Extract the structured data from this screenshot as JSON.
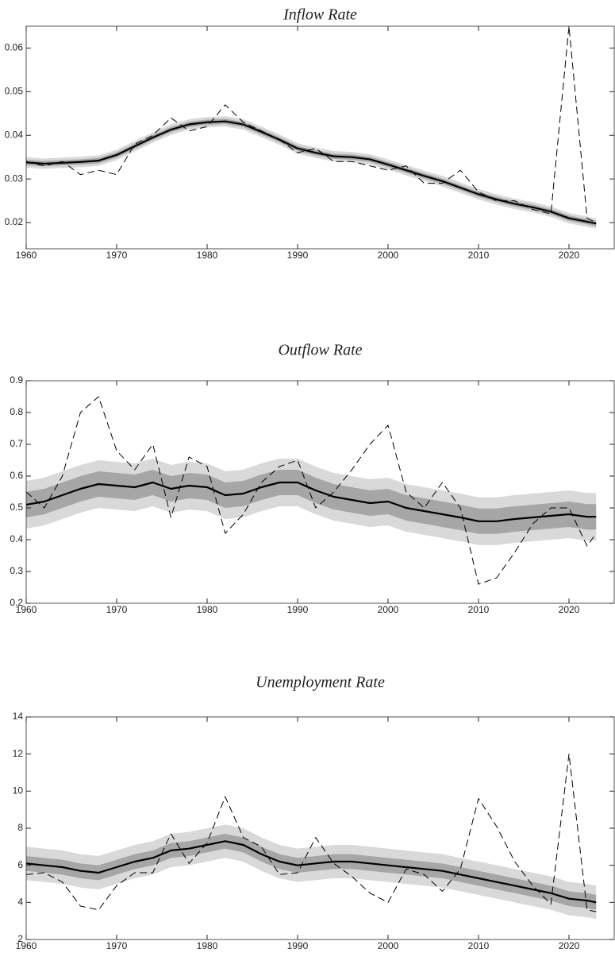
{
  "chart_data": [
    {
      "type": "line",
      "title": "Inflow Rate",
      "x": [
        1960,
        1962,
        1964,
        1966,
        1968,
        1970,
        1972,
        1974,
        1976,
        1978,
        1980,
        1982,
        1984,
        1986,
        1988,
        1990,
        1992,
        1994,
        1996,
        1998,
        2000,
        2002,
        2004,
        2006,
        2008,
        2010,
        2012,
        2014,
        2016,
        2018,
        2020,
        2022,
        2023
      ],
      "xlim": [
        1960,
        2025
      ],
      "xticks": [
        1960,
        1970,
        1980,
        1990,
        2000,
        2010,
        2020
      ],
      "ylim": [
        0.014,
        0.065
      ],
      "yticks": [
        0.02,
        0.03,
        0.04,
        0.05,
        0.06
      ],
      "bands": [
        {
          "color": "#d9d9d9",
          "lower": [
            0.0326,
            0.0323,
            0.0325,
            0.0327,
            0.033,
            0.0343,
            0.0363,
            0.0383,
            0.0401,
            0.0413,
            0.0418,
            0.042,
            0.0413,
            0.0396,
            0.0378,
            0.0358,
            0.0348,
            0.034,
            0.0338,
            0.0333,
            0.0321,
            0.0308,
            0.0295,
            0.0283,
            0.0268,
            0.0253,
            0.0241,
            0.0231,
            0.0223,
            0.0213,
            0.0198,
            0.019,
            0.0186
          ],
          "upper": [
            0.035,
            0.0347,
            0.0349,
            0.0351,
            0.0354,
            0.0367,
            0.0387,
            0.0407,
            0.0425,
            0.0437,
            0.0442,
            0.0444,
            0.0437,
            0.042,
            0.0402,
            0.0382,
            0.0372,
            0.0364,
            0.0362,
            0.0357,
            0.0345,
            0.0332,
            0.0319,
            0.0307,
            0.0292,
            0.0277,
            0.0265,
            0.0255,
            0.0247,
            0.0237,
            0.0222,
            0.0214,
            0.021
          ]
        },
        {
          "color": "#a6a6a6",
          "lower": [
            0.0332,
            0.0329,
            0.0331,
            0.0333,
            0.0336,
            0.0349,
            0.0369,
            0.0389,
            0.0407,
            0.0419,
            0.0424,
            0.0426,
            0.0419,
            0.0402,
            0.0384,
            0.0364,
            0.0354,
            0.0346,
            0.0344,
            0.0339,
            0.0327,
            0.0314,
            0.0301,
            0.0289,
            0.0274,
            0.0259,
            0.0247,
            0.0237,
            0.0229,
            0.0219,
            0.0204,
            0.0196,
            0.0192
          ],
          "upper": [
            0.0344,
            0.0341,
            0.0343,
            0.0345,
            0.0348,
            0.0361,
            0.0381,
            0.0401,
            0.0419,
            0.0431,
            0.0436,
            0.0438,
            0.0431,
            0.0414,
            0.0396,
            0.0376,
            0.0366,
            0.0358,
            0.0356,
            0.0351,
            0.0339,
            0.0326,
            0.0313,
            0.0301,
            0.0286,
            0.0271,
            0.0259,
            0.0249,
            0.0241,
            0.0231,
            0.0216,
            0.0208,
            0.0204
          ]
        }
      ],
      "series": [
        {
          "color": "#000000",
          "dash": true,
          "values": [
            0.034,
            0.033,
            0.034,
            0.031,
            0.032,
            0.031,
            0.038,
            0.04,
            0.044,
            0.041,
            0.042,
            0.047,
            0.043,
            0.041,
            0.039,
            0.036,
            0.037,
            0.034,
            0.034,
            0.033,
            0.032,
            0.033,
            0.029,
            0.029,
            0.032,
            0.027,
            0.025,
            0.025,
            0.023,
            0.022,
            0.065,
            0.021,
            0.02
          ]
        },
        {
          "color": "#000000",
          "dash": false,
          "values": [
            0.0338,
            0.0335,
            0.0337,
            0.0339,
            0.0342,
            0.0355,
            0.0375,
            0.0395,
            0.0413,
            0.0425,
            0.043,
            0.0432,
            0.0425,
            0.0408,
            0.039,
            0.037,
            0.036,
            0.0352,
            0.035,
            0.0345,
            0.0333,
            0.032,
            0.0307,
            0.0295,
            0.028,
            0.0265,
            0.0253,
            0.0243,
            0.0235,
            0.0225,
            0.021,
            0.0202,
            0.0198
          ]
        }
      ]
    },
    {
      "type": "line",
      "title": "Outflow Rate",
      "x": [
        1960,
        1962,
        1964,
        1966,
        1968,
        1970,
        1972,
        1974,
        1976,
        1978,
        1980,
        1982,
        1984,
        1986,
        1988,
        1990,
        1992,
        1994,
        1996,
        1998,
        2000,
        2002,
        2004,
        2006,
        2008,
        2010,
        2012,
        2014,
        2016,
        2018,
        2020,
        2022,
        2023
      ],
      "xlim": [
        1960,
        2025
      ],
      "xticks": [
        1960,
        1970,
        1980,
        1990,
        2000,
        2010,
        2020
      ],
      "ylim": [
        0.2,
        0.9
      ],
      "yticks": [
        0.2,
        0.3,
        0.4,
        0.5,
        0.6,
        0.7,
        0.8,
        0.9
      ],
      "bands": [
        {
          "color": "#d9d9d9",
          "lower": [
            0.435,
            0.445,
            0.465,
            0.485,
            0.5,
            0.495,
            0.49,
            0.505,
            0.485,
            0.495,
            0.49,
            0.465,
            0.47,
            0.49,
            0.505,
            0.505,
            0.48,
            0.46,
            0.45,
            0.44,
            0.445,
            0.425,
            0.415,
            0.405,
            0.395,
            0.383,
            0.383,
            0.39,
            0.395,
            0.4,
            0.405,
            0.397,
            0.397
          ],
          "upper": [
            0.585,
            0.595,
            0.615,
            0.635,
            0.65,
            0.645,
            0.64,
            0.655,
            0.635,
            0.645,
            0.64,
            0.615,
            0.62,
            0.64,
            0.655,
            0.655,
            0.63,
            0.61,
            0.6,
            0.59,
            0.595,
            0.575,
            0.565,
            0.555,
            0.545,
            0.533,
            0.533,
            0.54,
            0.545,
            0.55,
            0.555,
            0.547,
            0.547
          ]
        },
        {
          "color": "#a6a6a6",
          "lower": [
            0.47,
            0.48,
            0.5,
            0.52,
            0.535,
            0.53,
            0.525,
            0.54,
            0.52,
            0.53,
            0.525,
            0.5,
            0.505,
            0.525,
            0.54,
            0.54,
            0.515,
            0.495,
            0.485,
            0.475,
            0.48,
            0.46,
            0.45,
            0.44,
            0.43,
            0.418,
            0.418,
            0.425,
            0.43,
            0.435,
            0.44,
            0.432,
            0.432
          ],
          "upper": [
            0.55,
            0.56,
            0.58,
            0.6,
            0.615,
            0.61,
            0.605,
            0.62,
            0.6,
            0.61,
            0.605,
            0.58,
            0.585,
            0.605,
            0.62,
            0.62,
            0.595,
            0.575,
            0.565,
            0.555,
            0.56,
            0.54,
            0.53,
            0.52,
            0.51,
            0.498,
            0.498,
            0.505,
            0.51,
            0.515,
            0.52,
            0.512,
            0.512
          ]
        }
      ],
      "series": [
        {
          "color": "#000000",
          "dash": true,
          "values": [
            0.55,
            0.5,
            0.6,
            0.8,
            0.85,
            0.68,
            0.62,
            0.7,
            0.47,
            0.66,
            0.63,
            0.42,
            0.48,
            0.58,
            0.63,
            0.65,
            0.5,
            0.55,
            0.62,
            0.7,
            0.76,
            0.55,
            0.5,
            0.58,
            0.5,
            0.26,
            0.28,
            0.36,
            0.45,
            0.5,
            0.5,
            0.38,
            0.42
          ]
        },
        {
          "color": "#000000",
          "dash": false,
          "values": [
            0.51,
            0.52,
            0.54,
            0.56,
            0.575,
            0.57,
            0.565,
            0.58,
            0.56,
            0.57,
            0.565,
            0.54,
            0.545,
            0.565,
            0.58,
            0.58,
            0.555,
            0.535,
            0.525,
            0.515,
            0.52,
            0.5,
            0.49,
            0.48,
            0.47,
            0.458,
            0.458,
            0.465,
            0.47,
            0.475,
            0.48,
            0.472,
            0.472
          ]
        }
      ]
    },
    {
      "type": "line",
      "title": "Unemployment Rate",
      "x": [
        1960,
        1962,
        1964,
        1966,
        1968,
        1970,
        1972,
        1974,
        1976,
        1978,
        1980,
        1982,
        1984,
        1986,
        1988,
        1990,
        1992,
        1994,
        1996,
        1998,
        2000,
        2002,
        2004,
        2006,
        2008,
        2010,
        2012,
        2014,
        2016,
        2018,
        2020,
        2022,
        2023
      ],
      "xlim": [
        1960,
        2025
      ],
      "xticks": [
        1960,
        1970,
        1980,
        1990,
        2000,
        2010,
        2020
      ],
      "ylim": [
        2,
        14
      ],
      "yticks": [
        2,
        4,
        6,
        8,
        10,
        12,
        14
      ],
      "bands": [
        {
          "color": "#d9d9d9",
          "lower": [
            5.2,
            5.1,
            5.0,
            4.8,
            4.7,
            5.0,
            5.3,
            5.5,
            5.9,
            6.0,
            6.2,
            6.4,
            6.2,
            5.7,
            5.3,
            5.1,
            5.2,
            5.3,
            5.3,
            5.2,
            5.1,
            5.0,
            4.9,
            4.8,
            4.6,
            4.4,
            4.2,
            4.0,
            3.8,
            3.6,
            3.3,
            3.2,
            3.1
          ],
          "upper": [
            7.0,
            6.9,
            6.8,
            6.6,
            6.5,
            6.8,
            7.1,
            7.3,
            7.7,
            7.8,
            8.0,
            8.2,
            8.0,
            7.5,
            7.1,
            6.9,
            7.0,
            7.1,
            7.1,
            7.0,
            6.9,
            6.8,
            6.7,
            6.6,
            6.4,
            6.2,
            6.0,
            5.8,
            5.6,
            5.4,
            5.1,
            5.0,
            4.9
          ]
        },
        {
          "color": "#a6a6a6",
          "lower": [
            5.7,
            5.6,
            5.5,
            5.3,
            5.2,
            5.5,
            5.8,
            6.0,
            6.4,
            6.5,
            6.7,
            6.9,
            6.7,
            6.2,
            5.8,
            5.6,
            5.7,
            5.8,
            5.8,
            5.7,
            5.6,
            5.5,
            5.4,
            5.3,
            5.1,
            4.9,
            4.7,
            4.5,
            4.3,
            4.1,
            3.8,
            3.7,
            3.6
          ],
          "upper": [
            6.5,
            6.4,
            6.3,
            6.1,
            6.0,
            6.3,
            6.6,
            6.8,
            7.2,
            7.3,
            7.5,
            7.7,
            7.5,
            7.0,
            6.6,
            6.4,
            6.5,
            6.6,
            6.6,
            6.5,
            6.4,
            6.3,
            6.2,
            6.1,
            5.9,
            5.7,
            5.5,
            5.3,
            5.1,
            4.9,
            4.6,
            4.5,
            4.4
          ]
        }
      ],
      "series": [
        {
          "color": "#000000",
          "dash": true,
          "values": [
            5.5,
            5.6,
            5.1,
            3.8,
            3.6,
            4.9,
            5.6,
            5.6,
            7.7,
            6.1,
            7.2,
            9.7,
            7.5,
            7.0,
            5.5,
            5.6,
            7.5,
            6.1,
            5.4,
            4.5,
            4.0,
            5.8,
            5.5,
            4.6,
            5.8,
            9.6,
            8.1,
            6.2,
            4.9,
            3.9,
            12.0,
            3.6,
            3.5
          ]
        },
        {
          "color": "#000000",
          "dash": false,
          "values": [
            6.1,
            6.0,
            5.9,
            5.7,
            5.6,
            5.9,
            6.2,
            6.4,
            6.8,
            6.9,
            7.1,
            7.3,
            7.1,
            6.6,
            6.2,
            6.0,
            6.1,
            6.2,
            6.2,
            6.1,
            6.0,
            5.9,
            5.8,
            5.7,
            5.5,
            5.3,
            5.1,
            4.9,
            4.7,
            4.5,
            4.2,
            4.1,
            4.0
          ]
        }
      ]
    }
  ]
}
